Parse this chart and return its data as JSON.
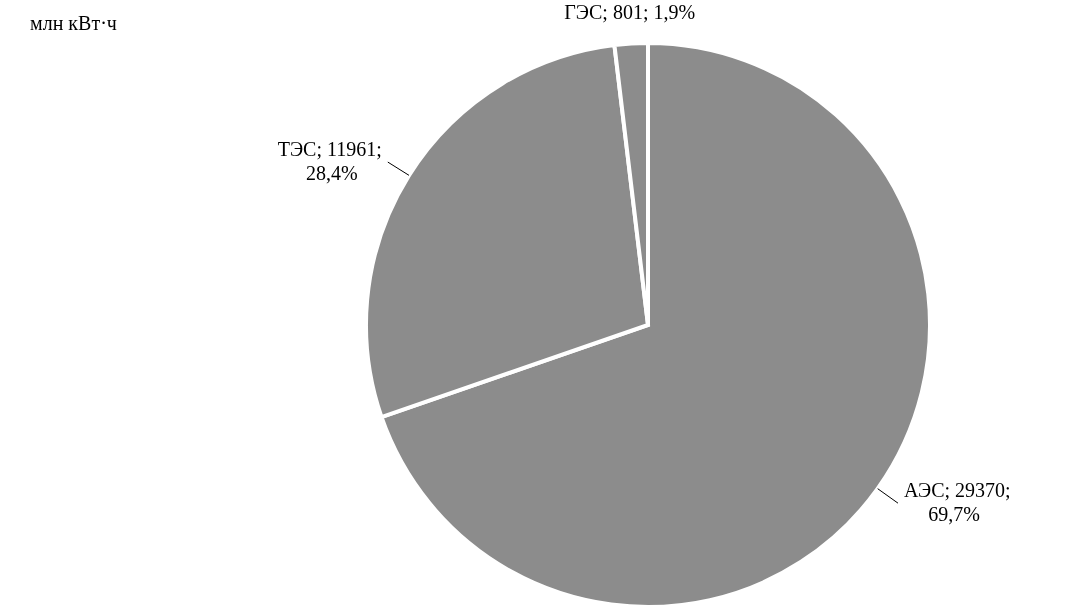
{
  "chart_data": {
    "type": "pie",
    "title": "млн кВт·ч",
    "categories": [
      "АЭС",
      "ТЭС",
      "ГЭС"
    ],
    "values": [
      29370,
      11961,
      801
    ],
    "colors": [
      "#8c8c8c",
      "#8c8c8c",
      "#8c8c8c"
    ],
    "value_labels": [
      "29370;\n69,7%",
      "11961;\n28,4%",
      "801; 1,9%"
    ]
  }
}
